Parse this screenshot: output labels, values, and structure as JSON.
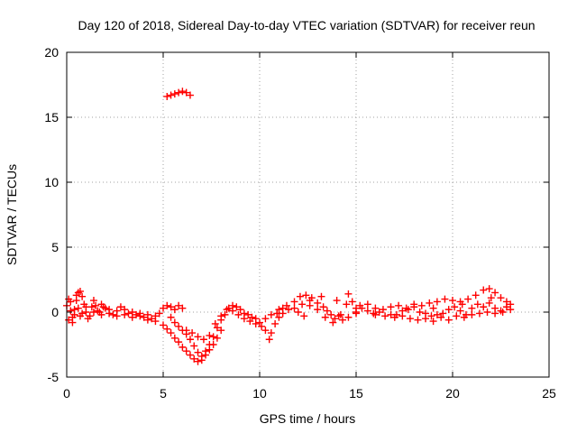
{
  "chart_data": {
    "type": "scatter",
    "title": "Day 120 of 2018, Sidereal Day-to-day VTEC variation (SDTVAR) for receiver reun",
    "xlabel": "GPS time / hours",
    "ylabel": "SDTVAR / TECUs",
    "xlim": [
      0,
      25
    ],
    "ylim": [
      -5,
      20
    ],
    "xticks": [
      "0",
      "5",
      "10",
      "15",
      "20",
      "25"
    ],
    "yticks": [
      "-5",
      "0",
      "5",
      "10",
      "15",
      "20"
    ],
    "grid": true,
    "marker": "plus",
    "color": "#ff0000",
    "series": [
      {
        "name": "SDTVAR",
        "points": [
          [
            0.0,
            0.5
          ],
          [
            0.1,
            -0.6
          ],
          [
            0.2,
            0.8
          ],
          [
            0.3,
            -0.4
          ],
          [
            0.4,
            0.2
          ],
          [
            0.5,
            1.3
          ],
          [
            0.6,
            1.5
          ],
          [
            0.7,
            1.6
          ],
          [
            0.8,
            1.2
          ],
          [
            0.9,
            0.6
          ],
          [
            1.0,
            0.0
          ],
          [
            1.1,
            -0.5
          ],
          [
            1.2,
            -0.3
          ],
          [
            1.3,
            0.4
          ],
          [
            1.4,
            0.9
          ],
          [
            1.5,
            0.5
          ],
          [
            1.6,
            0.1
          ],
          [
            1.7,
            0.0
          ],
          [
            1.8,
            0.6
          ],
          [
            1.9,
            0.4
          ],
          [
            2.0,
            0.3
          ],
          [
            2.2,
            0.2
          ],
          [
            2.4,
            -0.2
          ],
          [
            2.6,
            0.1
          ],
          [
            2.8,
            0.4
          ],
          [
            3.0,
            0.2
          ],
          [
            3.2,
            -0.1
          ],
          [
            3.4,
            0.0
          ],
          [
            3.6,
            -0.2
          ],
          [
            3.8,
            -0.1
          ],
          [
            4.0,
            -0.4
          ],
          [
            4.2,
            -0.2
          ],
          [
            4.4,
            -0.5
          ],
          [
            4.6,
            -0.3
          ],
          [
            4.8,
            -0.1
          ],
          [
            5.0,
            0.3
          ],
          [
            5.2,
            0.5
          ],
          [
            5.4,
            0.4
          ],
          [
            5.6,
            0.2
          ],
          [
            5.8,
            0.5
          ],
          [
            6.0,
            0.3
          ],
          [
            0.2,
            0.1
          ],
          [
            0.4,
            -0.2
          ],
          [
            0.6,
            0.3
          ],
          [
            0.8,
            -0.1
          ],
          [
            1.0,
            0.4
          ],
          [
            1.4,
            0.0
          ],
          [
            1.8,
            -0.2
          ],
          [
            2.2,
            -0.1
          ],
          [
            2.6,
            -0.3
          ],
          [
            3.0,
            -0.2
          ],
          [
            3.4,
            -0.4
          ],
          [
            3.8,
            -0.3
          ],
          [
            4.2,
            -0.6
          ],
          [
            4.6,
            -0.7
          ],
          [
            5.0,
            -1.0
          ],
          [
            5.2,
            -1.3
          ],
          [
            5.4,
            -1.6
          ],
          [
            5.6,
            -2.0
          ],
          [
            5.8,
            -2.3
          ],
          [
            6.0,
            -2.7
          ],
          [
            6.2,
            -3.0
          ],
          [
            6.4,
            -3.3
          ],
          [
            6.6,
            -3.6
          ],
          [
            6.8,
            -3.8
          ],
          [
            7.0,
            -3.7
          ],
          [
            7.2,
            -3.3
          ],
          [
            7.4,
            -2.9
          ],
          [
            7.6,
            -2.5
          ],
          [
            7.8,
            -2.0
          ],
          [
            8.0,
            -1.4
          ],
          [
            5.4,
            -0.4
          ],
          [
            5.6,
            -0.8
          ],
          [
            5.8,
            -1.1
          ],
          [
            6.0,
            -1.4
          ],
          [
            6.2,
            -1.7
          ],
          [
            6.4,
            -2.1
          ],
          [
            6.6,
            -2.6
          ],
          [
            6.8,
            -3.1
          ],
          [
            7.0,
            -3.4
          ],
          [
            7.2,
            -3.0
          ],
          [
            7.4,
            -2.5
          ],
          [
            7.6,
            -1.9
          ],
          [
            7.8,
            -1.2
          ],
          [
            8.0,
            -0.6
          ],
          [
            8.2,
            -0.2
          ],
          [
            8.4,
            0.3
          ],
          [
            8.6,
            0.5
          ],
          [
            8.8,
            0.4
          ],
          [
            9.0,
            0.2
          ],
          [
            9.2,
            -0.1
          ],
          [
            9.4,
            -0.2
          ],
          [
            9.6,
            -0.4
          ],
          [
            9.8,
            -0.5
          ],
          [
            10.0,
            -0.8
          ],
          [
            6.2,
            -1.4
          ],
          [
            6.5,
            -1.6
          ],
          [
            6.8,
            -1.9
          ],
          [
            7.1,
            -2.1
          ],
          [
            7.4,
            -1.8
          ],
          [
            7.7,
            -0.9
          ],
          [
            8.0,
            -0.3
          ],
          [
            8.3,
            0.2
          ],
          [
            8.6,
            0.1
          ],
          [
            8.9,
            -0.2
          ],
          [
            9.2,
            -0.5
          ],
          [
            9.5,
            -0.7
          ],
          [
            9.8,
            -0.9
          ],
          [
            10.1,
            -1.1
          ],
          [
            10.3,
            -1.4
          ],
          [
            10.5,
            -2.1
          ],
          [
            10.6,
            -1.6
          ],
          [
            10.8,
            -0.9
          ],
          [
            11.0,
            -0.4
          ],
          [
            11.2,
            -0.1
          ],
          [
            10.3,
            -0.5
          ],
          [
            10.6,
            -0.2
          ],
          [
            10.9,
            -0.1
          ],
          [
            11.2,
            0.3
          ],
          [
            11.5,
            0.2
          ],
          [
            11.8,
            0.8
          ],
          [
            12.1,
            1.2
          ],
          [
            12.4,
            1.3
          ],
          [
            12.7,
            1.1
          ],
          [
            13.0,
            0.7
          ],
          [
            13.3,
            0.4
          ],
          [
            13.5,
            0.1
          ],
          [
            13.7,
            -0.2
          ],
          [
            13.9,
            -0.5
          ],
          [
            14.1,
            -0.3
          ],
          [
            14.3,
            -0.6
          ],
          [
            14.5,
            0.6
          ],
          [
            14.6,
            1.4
          ],
          [
            14.8,
            0.8
          ],
          [
            15.0,
            0.3
          ],
          [
            11.0,
            0.2
          ],
          [
            11.4,
            0.5
          ],
          [
            11.8,
            0.3
          ],
          [
            12.2,
            0.6
          ],
          [
            12.6,
            0.9
          ],
          [
            13.0,
            0.2
          ],
          [
            13.4,
            -0.4
          ],
          [
            13.8,
            -0.8
          ],
          [
            14.2,
            -0.2
          ],
          [
            14.6,
            -0.4
          ],
          [
            15.0,
            -0.1
          ],
          [
            15.0,
            0.0
          ],
          [
            15.3,
            0.3
          ],
          [
            15.6,
            0.1
          ],
          [
            15.9,
            -0.1
          ],
          [
            16.2,
            0.0
          ],
          [
            16.5,
            -0.3
          ],
          [
            16.8,
            -0.2
          ],
          [
            17.1,
            -0.2
          ],
          [
            17.4,
            0.1
          ],
          [
            17.7,
            0.2
          ],
          [
            18.0,
            0.4
          ],
          [
            18.3,
            0.0
          ],
          [
            18.6,
            -0.1
          ],
          [
            18.9,
            -0.3
          ],
          [
            19.2,
            -0.2
          ],
          [
            19.5,
            -0.1
          ],
          [
            19.8,
            0.2
          ],
          [
            20.1,
            0.4
          ],
          [
            20.4,
            0.1
          ],
          [
            20.7,
            -0.2
          ],
          [
            21.0,
            0.3
          ],
          [
            21.3,
            0.6
          ],
          [
            21.6,
            0.4
          ],
          [
            21.9,
            0.7
          ],
          [
            22.2,
            0.3
          ],
          [
            22.5,
            0.1
          ],
          [
            22.8,
            0.4
          ],
          [
            23.0,
            0.6
          ],
          [
            15.2,
            0.5
          ],
          [
            15.6,
            0.6
          ],
          [
            16.0,
            0.3
          ],
          [
            16.4,
            0.2
          ],
          [
            16.8,
            0.4
          ],
          [
            17.2,
            0.5
          ],
          [
            17.6,
            0.3
          ],
          [
            18.0,
            0.6
          ],
          [
            18.4,
            0.5
          ],
          [
            18.8,
            0.7
          ],
          [
            19.2,
            0.8
          ],
          [
            19.6,
            1.0
          ],
          [
            20.0,
            0.9
          ],
          [
            20.4,
            0.8
          ],
          [
            20.8,
            1.0
          ],
          [
            21.2,
            1.3
          ],
          [
            21.6,
            1.7
          ],
          [
            21.9,
            1.8
          ],
          [
            22.2,
            1.5
          ],
          [
            22.5,
            1.1
          ],
          [
            22.8,
            0.8
          ],
          [
            17.0,
            -0.4
          ],
          [
            17.4,
            -0.3
          ],
          [
            17.8,
            -0.5
          ],
          [
            18.2,
            -0.6
          ],
          [
            18.6,
            -0.5
          ],
          [
            19.0,
            -0.7
          ],
          [
            19.4,
            -0.4
          ],
          [
            19.8,
            -0.6
          ],
          [
            20.2,
            -0.3
          ],
          [
            20.6,
            -0.4
          ],
          [
            21.0,
            -0.2
          ],
          [
            21.4,
            -0.1
          ],
          [
            21.8,
            0.0
          ],
          [
            22.2,
            -0.1
          ],
          [
            22.6,
            0.0
          ],
          [
            5.2,
            16.6
          ],
          [
            5.4,
            16.7
          ],
          [
            5.6,
            16.8
          ],
          [
            5.8,
            16.9
          ],
          [
            6.0,
            17.0
          ],
          [
            6.2,
            16.9
          ],
          [
            6.4,
            16.7
          ],
          [
            0.1,
            1.0
          ],
          [
            0.3,
            -0.8
          ],
          [
            0.5,
            0.9
          ],
          [
            0.7,
            -0.3
          ],
          [
            12.0,
            0.0
          ],
          [
            12.3,
            -0.3
          ],
          [
            12.6,
            0.5
          ],
          [
            13.2,
            1.2
          ],
          [
            14.0,
            0.9
          ],
          [
            16.0,
            -0.2
          ],
          [
            19.0,
            0.3
          ],
          [
            20.5,
            0.6
          ],
          [
            22.0,
            1.1
          ],
          [
            23.0,
            0.2
          ]
        ]
      }
    ]
  }
}
